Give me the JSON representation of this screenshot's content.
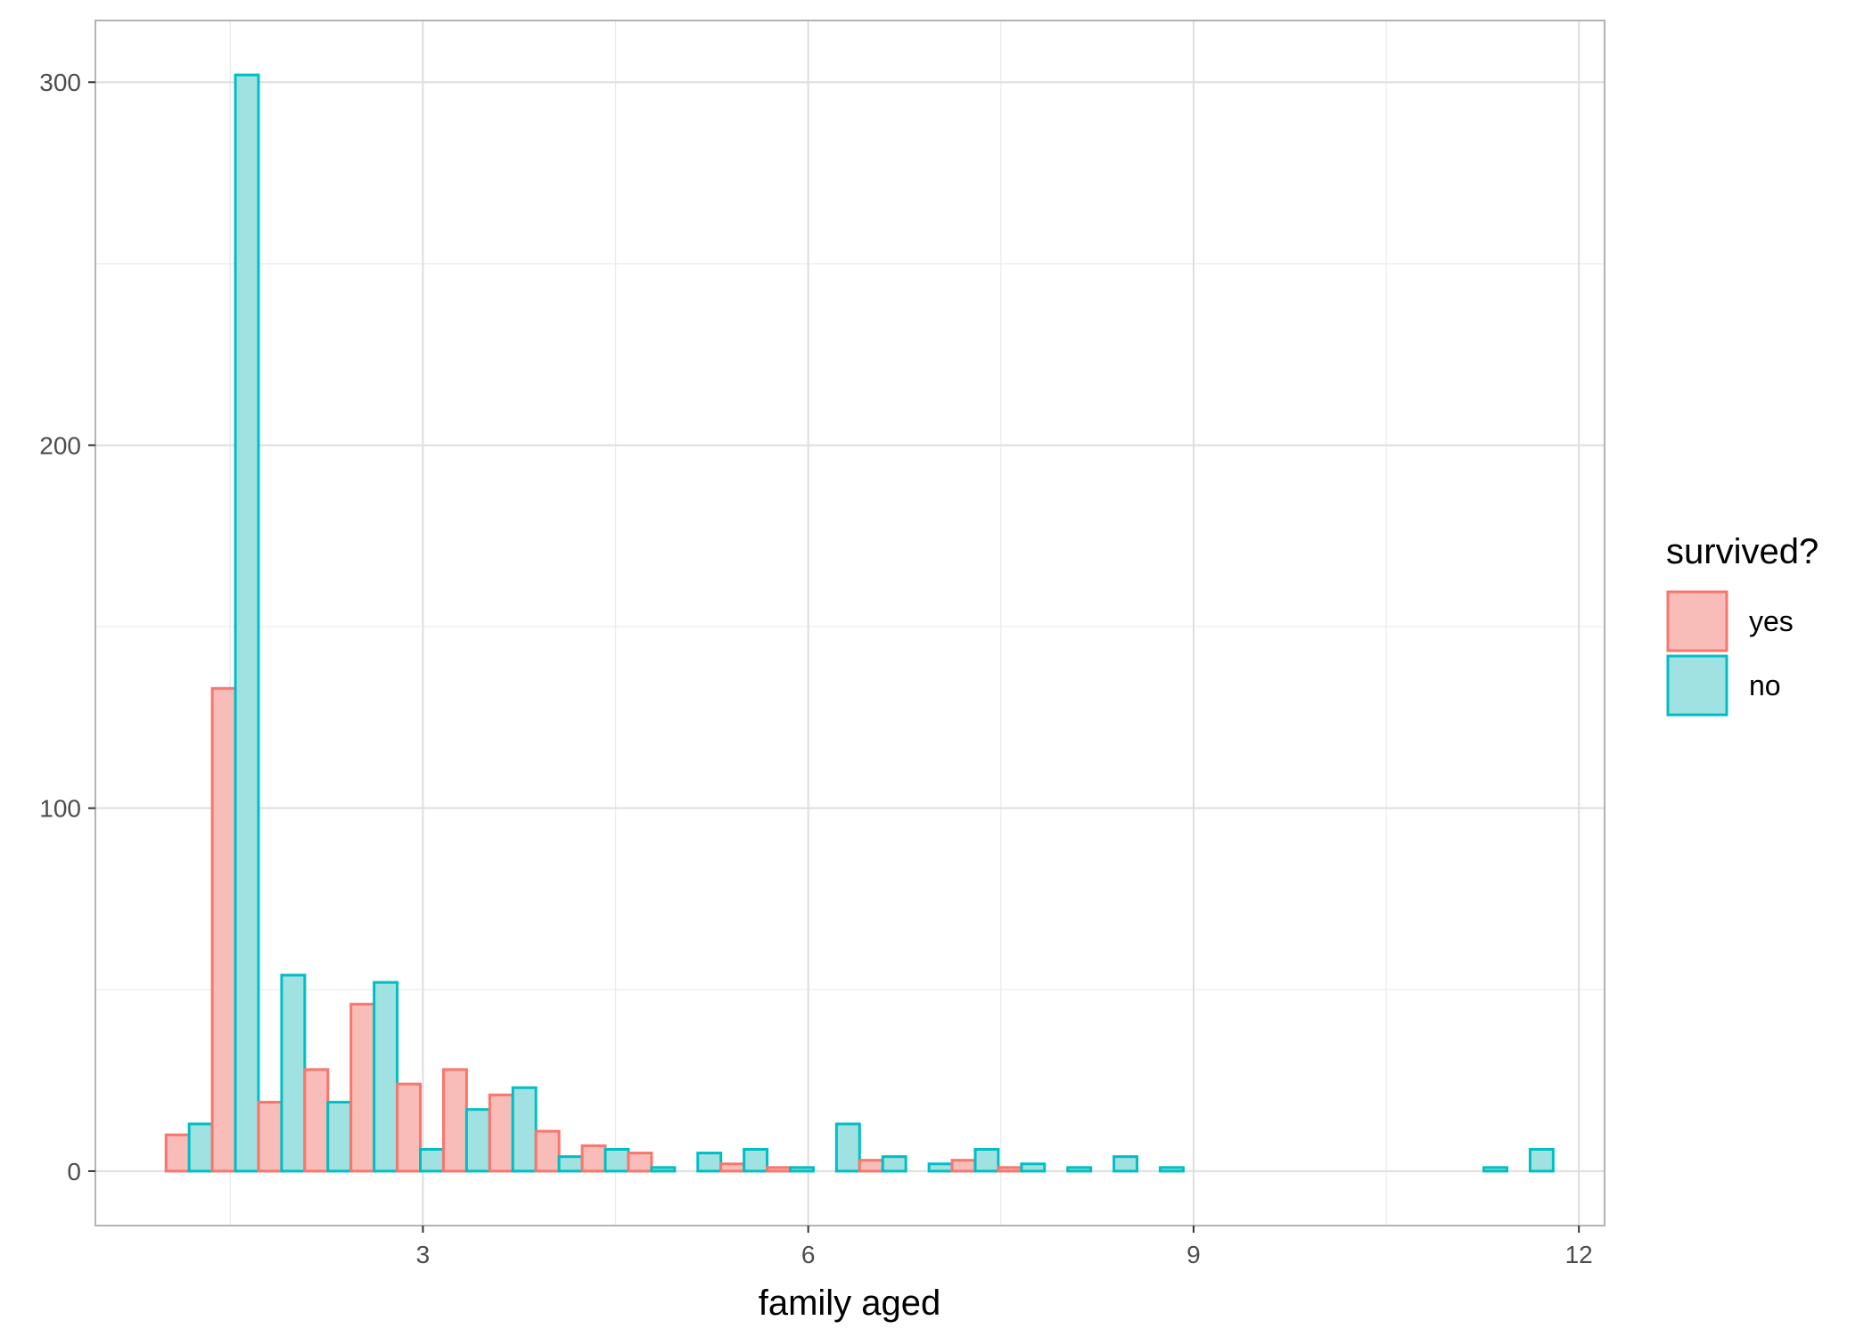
{
  "chart_data": {
    "type": "bar",
    "subtype": "grouped-histogram",
    "title": "",
    "xlabel": "family aged",
    "ylabel": "",
    "xlim": [
      0.45,
      12.2
    ],
    "ylim": [
      -15,
      317
    ],
    "xticks": [
      3,
      6,
      9,
      12
    ],
    "xtick_labels": [
      "3",
      "6",
      "9",
      "12"
    ],
    "yticks": [
      0,
      100,
      200,
      300
    ],
    "ytick_labels": [
      "0",
      "100",
      "200",
      "300"
    ],
    "grid": true,
    "legend": {
      "title": "survived?",
      "position": "right"
    },
    "bin_starts": [
      1.0,
      1.36,
      1.72,
      2.08,
      2.44,
      2.8,
      3.16,
      3.52,
      3.88,
      4.24,
      4.6,
      4.96,
      5.32,
      5.68,
      6.04,
      6.4,
      6.76,
      7.12,
      7.48,
      7.84,
      8.2,
      8.56,
      8.92,
      9.28,
      9.64,
      10.0,
      10.36,
      10.72,
      11.08,
      11.44
    ],
    "bin_width": 0.36,
    "series": [
      {
        "name": "yes",
        "stroke": "#F8766D",
        "fill": "#F8BDB8",
        "values": [
          10,
          133,
          19,
          28,
          46,
          24,
          28,
          21,
          11,
          7,
          5,
          0,
          2,
          1,
          0,
          3,
          0,
          3,
          1,
          0,
          0,
          0,
          0,
          0,
          0,
          0,
          0,
          0,
          0,
          0
        ]
      },
      {
        "name": "no",
        "stroke": "#00BFC4",
        "fill": "#A0E1E1",
        "values": [
          13,
          302,
          54,
          19,
          52,
          6,
          17,
          23,
          4,
          6,
          1,
          5,
          6,
          1,
          13,
          4,
          2,
          6,
          2,
          1,
          4,
          1,
          0,
          0,
          0,
          0,
          0,
          0,
          1,
          6
        ]
      }
    ]
  },
  "colors": {
    "grid_major": "#DEDEDE",
    "grid_minor": "#EBEBEB",
    "panel_border": "#B3B3B3"
  }
}
